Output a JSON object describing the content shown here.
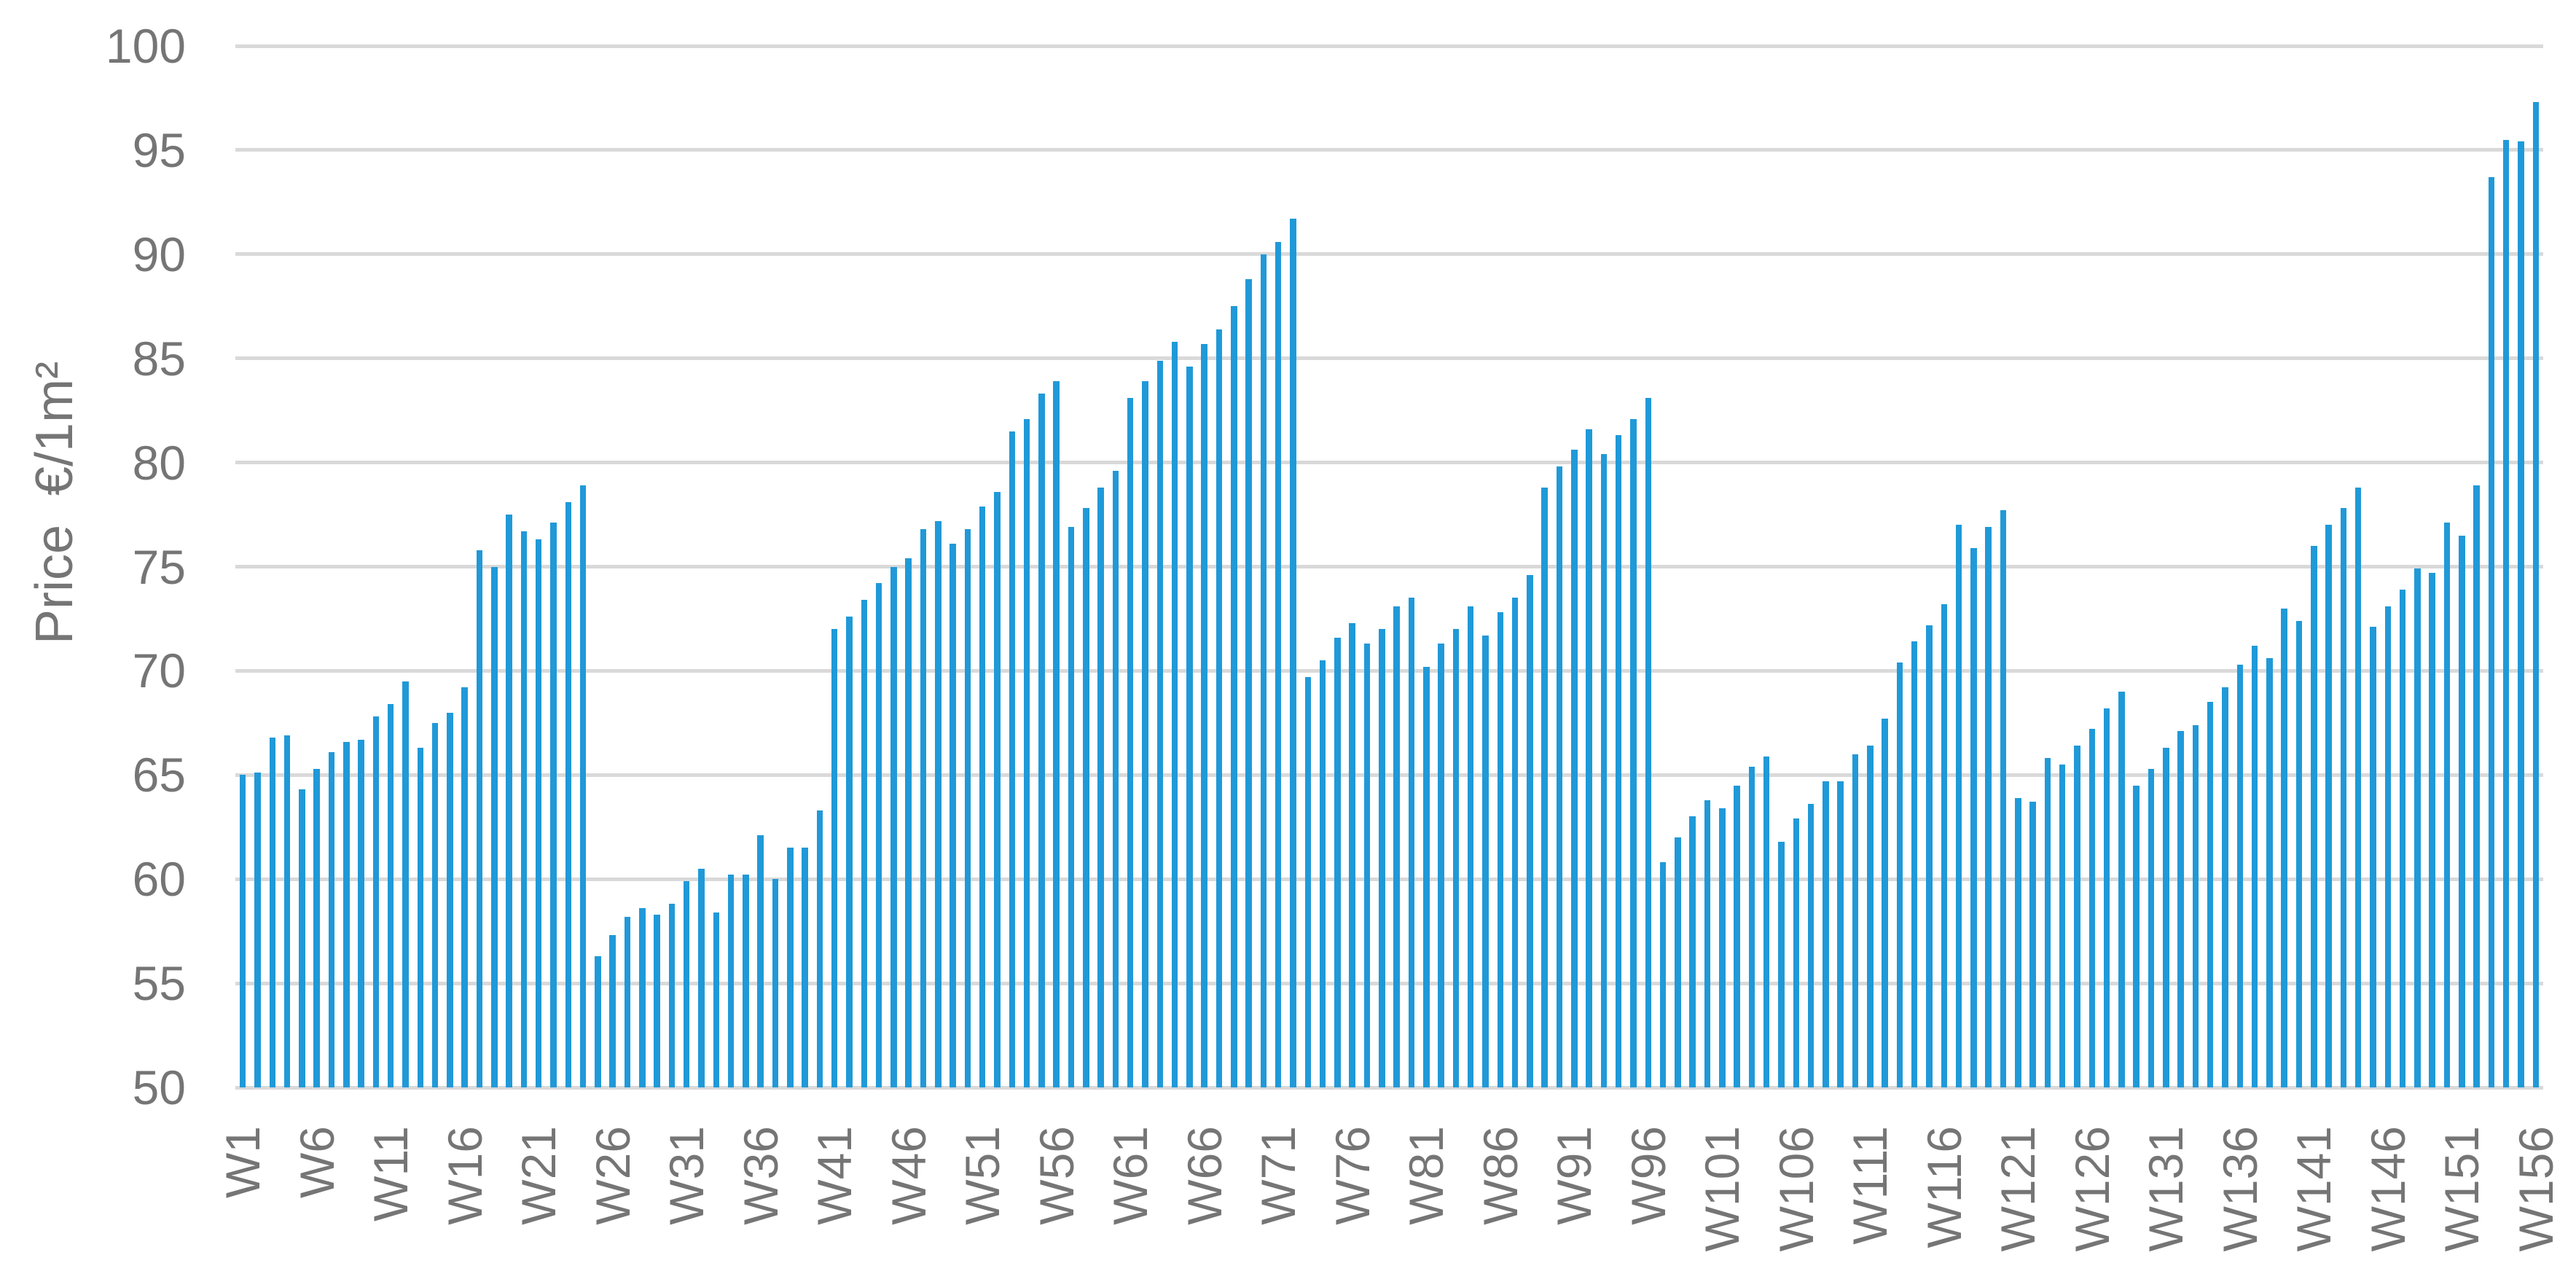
{
  "chart_data": {
    "type": "bar",
    "title": "",
    "xlabel": "",
    "ylabel": "Price  €/1m²",
    "ylim": [
      50,
      100
    ],
    "y_ticks": [
      50,
      55,
      60,
      65,
      70,
      75,
      80,
      85,
      90,
      95,
      100
    ],
    "x_tick_every": 5,
    "x_tick_labels": [
      "W1",
      "W6",
      "W11",
      "W16",
      "W21",
      "W26",
      "W31",
      "W36",
      "W41",
      "W46",
      "W51",
      "W56",
      "W61",
      "W66",
      "W71",
      "W76",
      "W81",
      "W86",
      "W91",
      "W96",
      "W101",
      "W106",
      "W111",
      "W116",
      "W121",
      "W126",
      "W131",
      "W136",
      "W141",
      "W146",
      "W151",
      "W156"
    ],
    "grid": "horizontal",
    "legend": "none",
    "bar_color": "#2099d8",
    "gridline_color": "#d9d9d9",
    "label_color": "#757575",
    "categories": [
      "W1",
      "W2",
      "W3",
      "W4",
      "W5",
      "W6",
      "W7",
      "W8",
      "W9",
      "W10",
      "W11",
      "W12",
      "W13",
      "W14",
      "W15",
      "W16",
      "W17",
      "W18",
      "W19",
      "W20",
      "W21",
      "W22",
      "W23",
      "W24",
      "W25",
      "W26",
      "W27",
      "W28",
      "W29",
      "W30",
      "W31",
      "W32",
      "W33",
      "W34",
      "W35",
      "W36",
      "W37",
      "W38",
      "W39",
      "W40",
      "W41",
      "W42",
      "W43",
      "W44",
      "W45",
      "W46",
      "W47",
      "W48",
      "W49",
      "W50",
      "W51",
      "W52",
      "W53",
      "W54",
      "W55",
      "W56",
      "W57",
      "W58",
      "W59",
      "W60",
      "W61",
      "W62",
      "W63",
      "W64",
      "W65",
      "W66",
      "W67",
      "W68",
      "W69",
      "W70",
      "W71",
      "W72",
      "W73",
      "W74",
      "W75",
      "W76",
      "W77",
      "W78",
      "W79",
      "W80",
      "W81",
      "W82",
      "W83",
      "W84",
      "W85",
      "W86",
      "W87",
      "W88",
      "W89",
      "W90",
      "W91",
      "W92",
      "W93",
      "W94",
      "W95",
      "W96",
      "W97",
      "W98",
      "W99",
      "W100",
      "W101",
      "W102",
      "W103",
      "W104",
      "W105",
      "W106",
      "W107",
      "W108",
      "W109",
      "W110",
      "W111",
      "W112",
      "W113",
      "W114",
      "W115",
      "W116",
      "W117",
      "W118",
      "W119",
      "W120",
      "W121",
      "W122",
      "W123",
      "W124",
      "W125",
      "W126",
      "W127",
      "W128",
      "W129",
      "W130",
      "W131",
      "W132",
      "W133",
      "W134",
      "W135",
      "W136",
      "W137",
      "W138",
      "W139",
      "W140",
      "W141",
      "W142",
      "W143",
      "W144",
      "W145",
      "W146",
      "W147",
      "W148",
      "W149",
      "W150",
      "W151",
      "W152",
      "W153",
      "W154",
      "W155",
      "W156"
    ],
    "values": [
      65.0,
      65.1,
      66.8,
      66.9,
      64.3,
      65.3,
      66.1,
      66.6,
      66.7,
      67.8,
      68.4,
      69.5,
      66.3,
      67.5,
      68.0,
      69.2,
      75.8,
      75.0,
      77.5,
      76.7,
      76.3,
      77.1,
      78.1,
      78.9,
      56.3,
      57.3,
      58.2,
      58.6,
      58.3,
      58.8,
      59.9,
      60.5,
      58.4,
      60.2,
      60.2,
      62.1,
      60.0,
      61.5,
      61.5,
      63.3,
      72.0,
      72.6,
      73.4,
      74.2,
      75.0,
      75.4,
      76.8,
      77.2,
      76.1,
      76.8,
      77.9,
      78.6,
      81.5,
      82.1,
      83.3,
      83.9,
      76.9,
      77.8,
      78.8,
      79.6,
      83.1,
      83.9,
      84.9,
      85.8,
      84.6,
      85.7,
      86.4,
      87.5,
      88.8,
      90.0,
      90.6,
      91.7,
      69.7,
      70.5,
      71.6,
      72.3,
      71.3,
      72.0,
      73.1,
      73.5,
      70.2,
      71.3,
      72.0,
      73.1,
      71.7,
      72.8,
      73.5,
      74.6,
      78.8,
      79.8,
      80.6,
      81.6,
      80.4,
      81.3,
      82.1,
      83.1,
      60.8,
      62.0,
      63.0,
      63.8,
      63.4,
      64.5,
      65.4,
      65.9,
      61.8,
      62.9,
      63.6,
      64.7,
      64.7,
      66.0,
      66.4,
      67.7,
      70.4,
      71.4,
      72.2,
      73.2,
      77.0,
      75.9,
      76.9,
      77.7,
      63.9,
      63.7,
      65.8,
      65.5,
      66.4,
      67.2,
      68.2,
      69.0,
      64.5,
      65.3,
      66.3,
      67.1,
      67.4,
      68.5,
      69.2,
      70.3,
      71.2,
      70.6,
      73.0,
      72.4,
      76.0,
      77.0,
      77.8,
      78.8,
      72.1,
      73.1,
      73.9,
      74.9,
      74.7,
      77.1,
      76.5,
      78.9,
      93.7,
      95.5,
      95.4,
      97.3
    ]
  }
}
